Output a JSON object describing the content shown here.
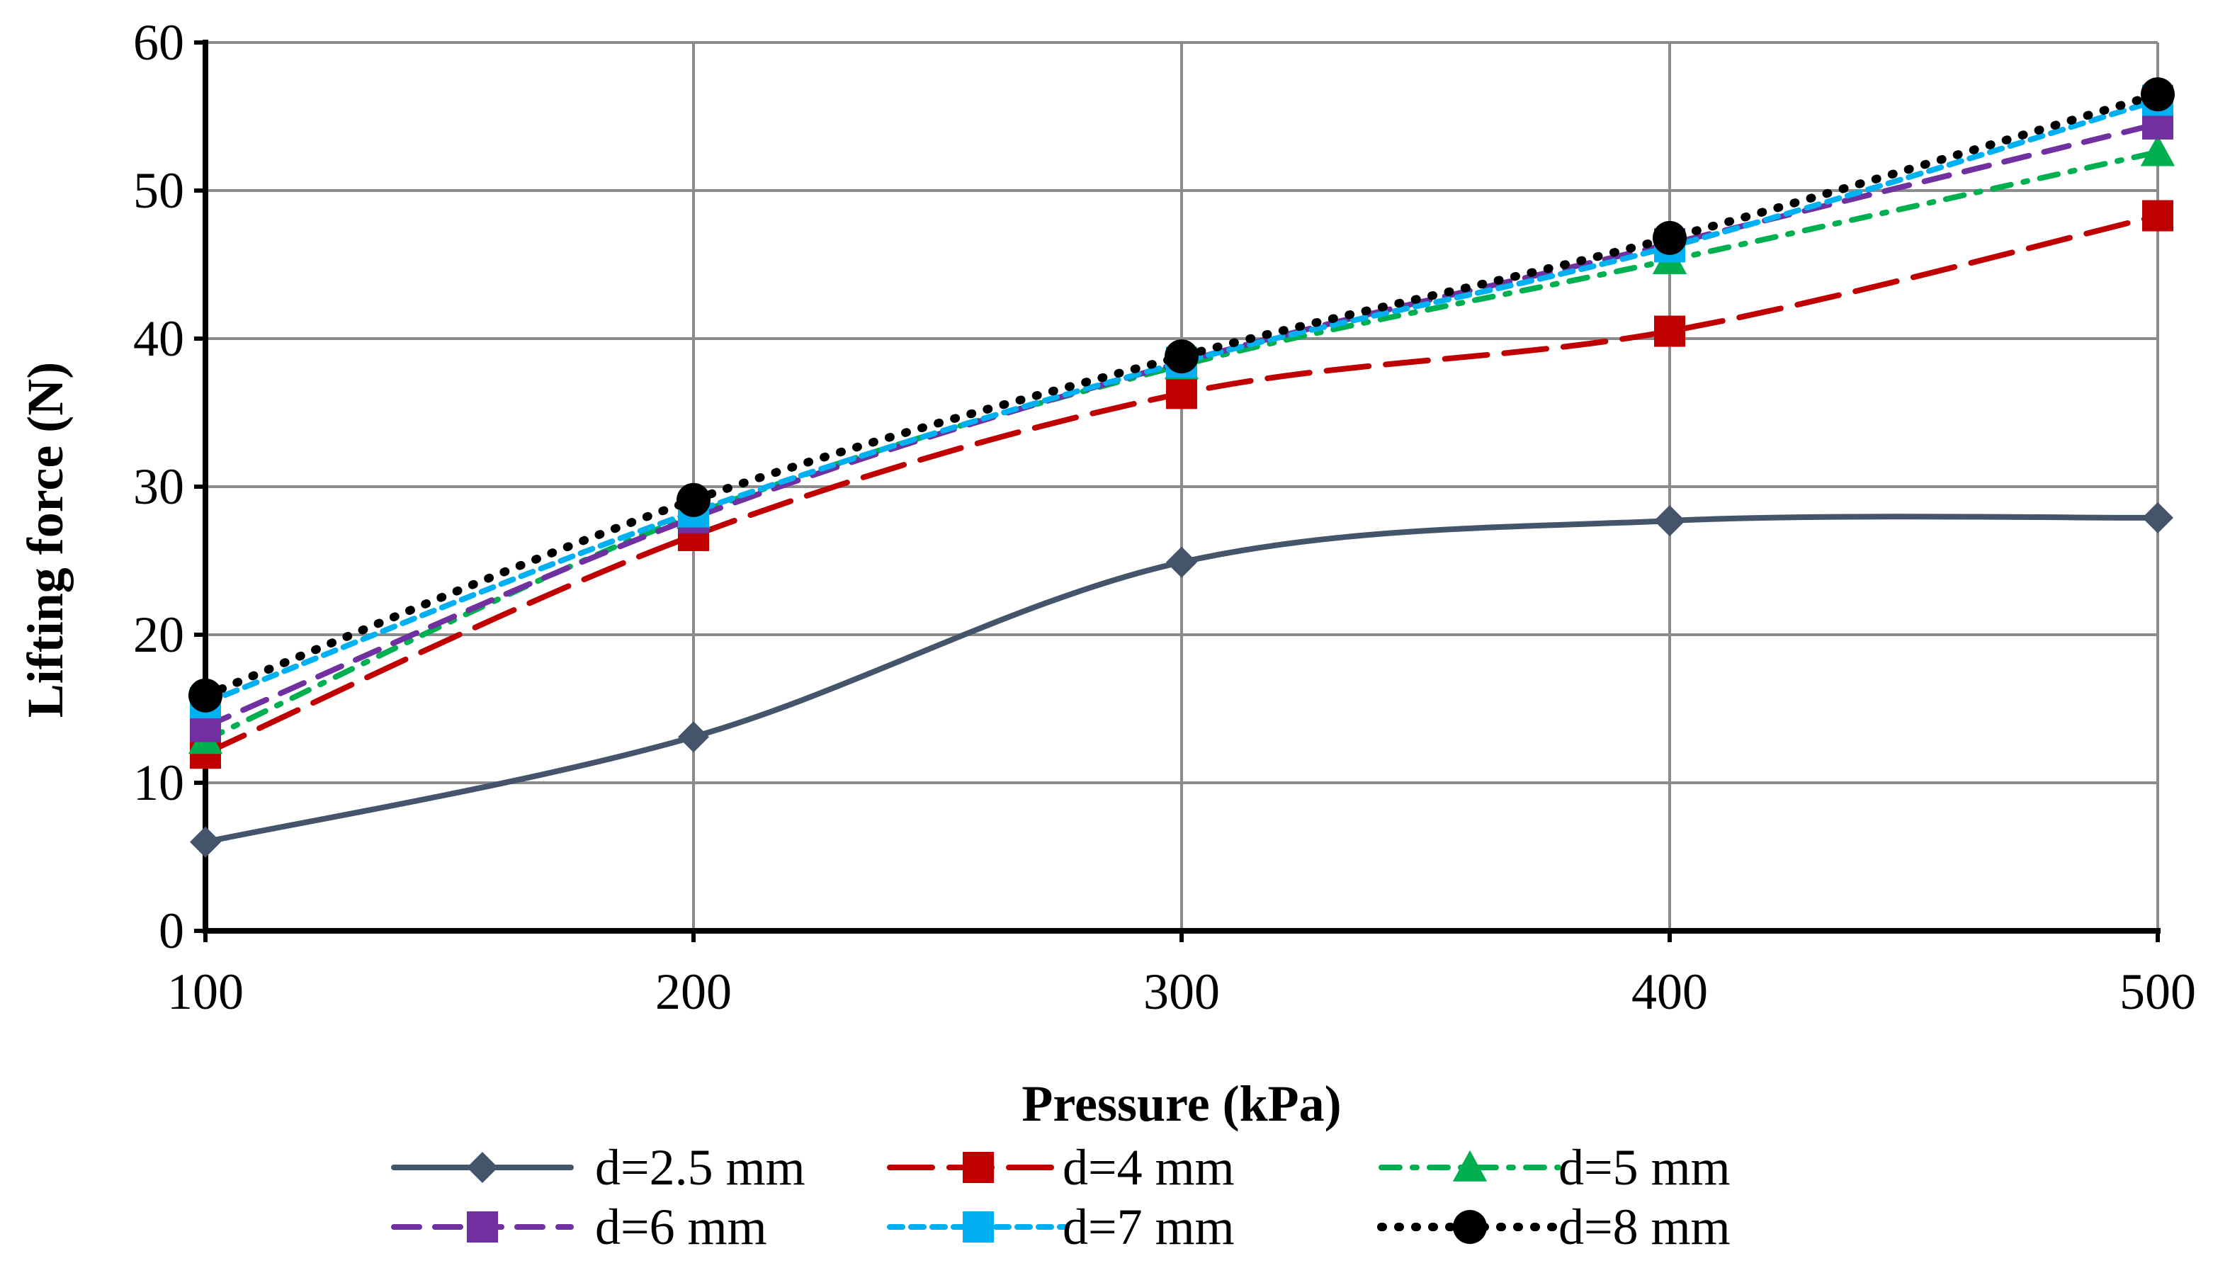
{
  "chart_data": {
    "type": "line",
    "title": "",
    "xlabel": "Pressure  (kPa)",
    "ylabel": "Lifting force  (N)",
    "x": [
      100,
      200,
      300,
      400,
      500
    ],
    "xlim": [
      100,
      500
    ],
    "ylim": [
      0,
      60
    ],
    "x_ticks": [
      "100",
      "200",
      "300",
      "400",
      "500"
    ],
    "y_ticks": [
      "0",
      "10",
      "20",
      "30",
      "40",
      "50",
      "60"
    ],
    "grid": true,
    "legend_position": "bottom",
    "series": [
      {
        "name": "d=2.5 mm",
        "values": [
          6.0,
          13.1,
          24.9,
          27.7,
          27.9
        ],
        "color": "#44546A",
        "marker": "diamond",
        "line_style": "solid"
      },
      {
        "name": "d=4 mm",
        "values": [
          12.0,
          26.7,
          36.3,
          40.5,
          48.3
        ],
        "color": "#C00000",
        "marker": "square",
        "line_style": "long-dash"
      },
      {
        "name": "d=5 mm",
        "values": [
          12.9,
          28.1,
          38.2,
          45.3,
          52.6
        ],
        "color": "#00B050",
        "marker": "triangle",
        "line_style": "dash-dot"
      },
      {
        "name": "d=6 mm",
        "values": [
          13.8,
          27.9,
          38.4,
          46.4,
          54.5
        ],
        "color": "#7030A0",
        "marker": "square",
        "line_style": "dash"
      },
      {
        "name": "d=7 mm",
        "values": [
          15.4,
          28.3,
          38.4,
          46.2,
          56.1
        ],
        "color": "#00B0F0",
        "marker": "square",
        "line_style": "short-dash"
      },
      {
        "name": "d=8 mm",
        "values": [
          15.9,
          29.1,
          38.8,
          46.8,
          56.5
        ],
        "color": "#000000",
        "marker": "circle",
        "line_style": "dot"
      }
    ]
  }
}
